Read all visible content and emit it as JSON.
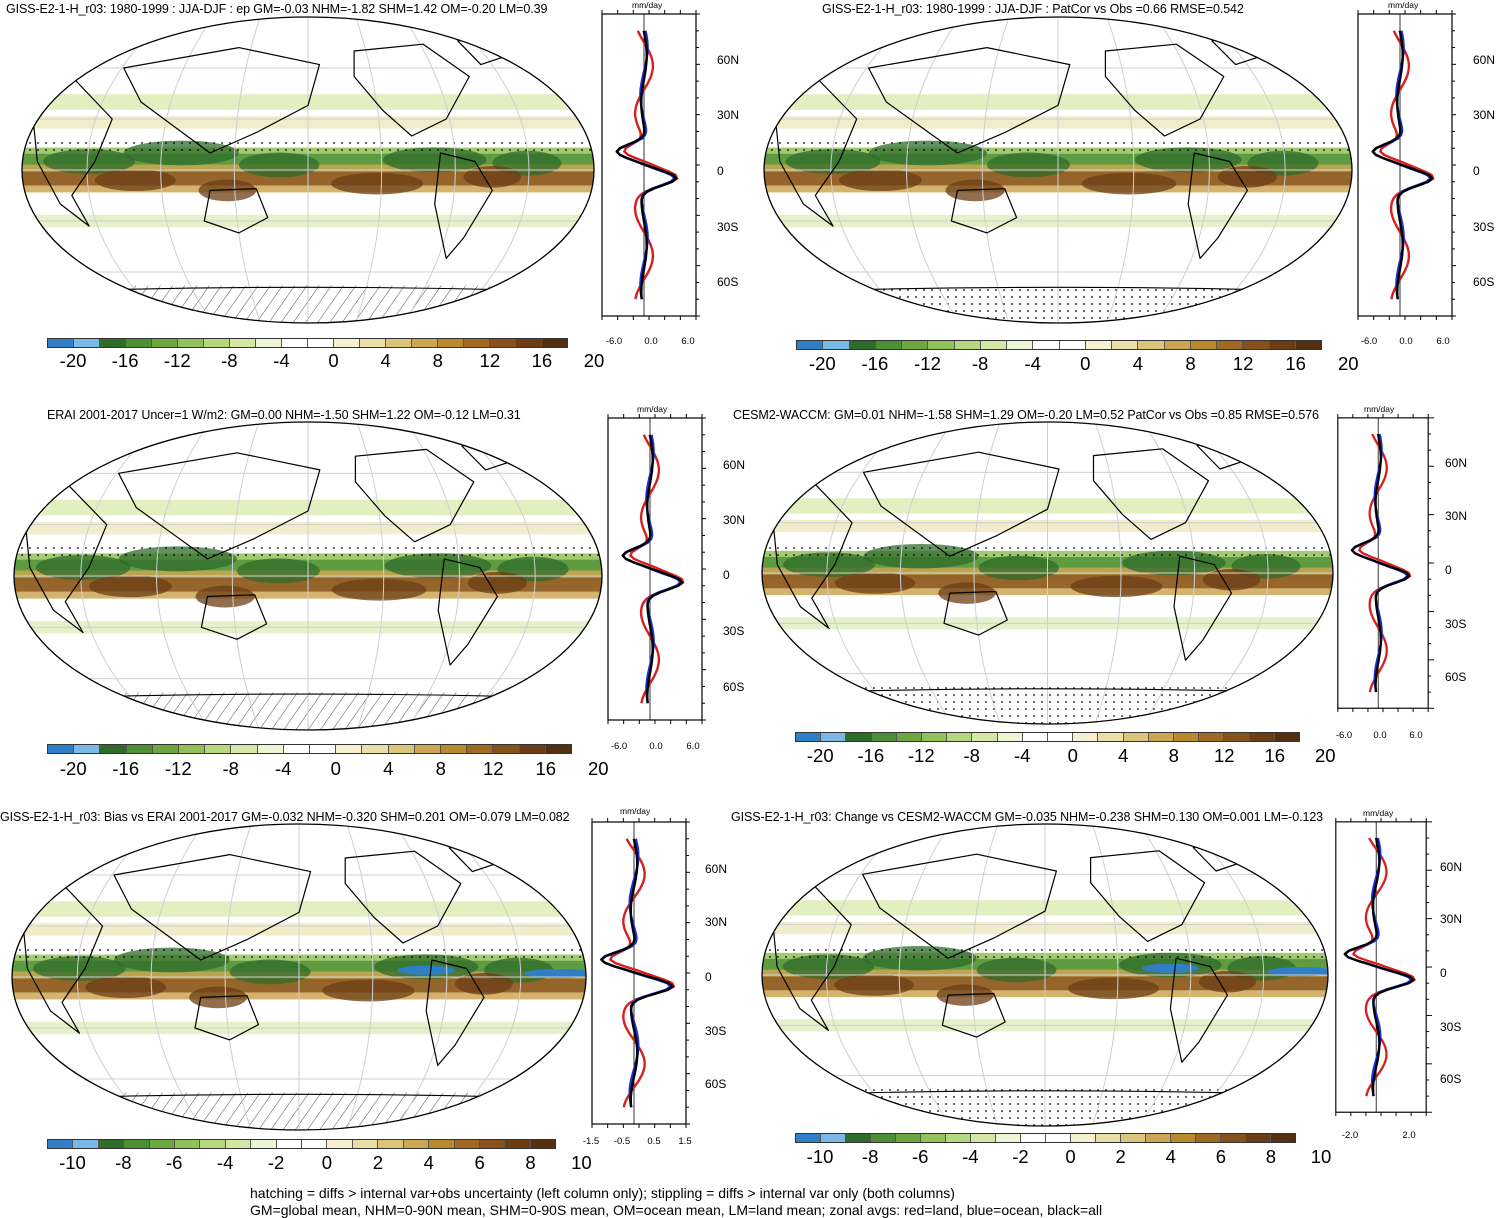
{
  "panels": [
    {
      "id": "p1",
      "title": "GISS-E2-1-H_r03: 1980-1999 : JJA-DJF : ep GM=-0.03 NHM=-1.82 SHM=1.42 OM=-0.20 LM=0.39",
      "colorbar_labels": [
        "-20",
        "-16",
        "-12",
        "-8",
        "-4",
        "0",
        "4",
        "8",
        "12",
        "16",
        "20"
      ],
      "zonal_xticks": [
        "-6.0",
        "0.0",
        "6.0"
      ],
      "zonal_ylabels": [
        "60N",
        "30N",
        "0",
        "30S",
        "60S"
      ],
      "zonal_unit": "mm/day",
      "hatching": true
    },
    {
      "id": "p2",
      "title": "GISS-E2-1-H_r03: 1980-1999 : JJA-DJF : PatCor vs Obs =0.66 RMSE=0.542",
      "colorbar_labels": [
        "-20",
        "-16",
        "-12",
        "-8",
        "-4",
        "0",
        "4",
        "8",
        "12",
        "16",
        "20"
      ],
      "zonal_xticks": [
        "-6.0",
        "0.0",
        "6.0"
      ],
      "zonal_ylabels": [
        "60N",
        "30N",
        "0",
        "30S",
        "60S"
      ],
      "zonal_unit": "mm/day",
      "hatching": false
    },
    {
      "id": "p3",
      "title": "ERAI 2001-2017 Uncer=1 W/m2: GM=0.00 NHM=-1.50 SHM=1.22 OM=-0.12 LM=0.31",
      "colorbar_labels": [
        "-20",
        "-16",
        "-12",
        "-8",
        "-4",
        "0",
        "4",
        "8",
        "12",
        "16",
        "20"
      ],
      "zonal_xticks": [
        "-6.0",
        "0.0",
        "6.0"
      ],
      "zonal_ylabels": [
        "60N",
        "30N",
        "0",
        "30S",
        "60S"
      ],
      "zonal_unit": "mm/day",
      "hatching": true
    },
    {
      "id": "p4",
      "title": "CESM2-WACCM: GM=0.01 NHM=-1.58 SHM=1.29 OM=-0.20 LM=0.52 PatCor vs Obs =0.85 RMSE=0.576",
      "colorbar_labels": [
        "-20",
        "-16",
        "-12",
        "-8",
        "-4",
        "0",
        "4",
        "8",
        "12",
        "16",
        "20"
      ],
      "zonal_xticks": [
        "-6.0",
        "0.0",
        "6.0"
      ],
      "zonal_ylabels": [
        "60N",
        "30N",
        "0",
        "30S",
        "60S"
      ],
      "zonal_unit": "mm/day",
      "hatching": false
    },
    {
      "id": "p5",
      "title": "GISS-E2-1-H_r03: Bias vs ERAI 2001-2017 GM=-0.032 NHM=-0.320 SHM=0.201 OM=-0.079 LM=0.082",
      "colorbar_labels": [
        "-10",
        "-8",
        "-6",
        "-4",
        "-2",
        "0",
        "2",
        "4",
        "6",
        "8",
        "10"
      ],
      "zonal_xticks": [
        "-1.5",
        "-0.5",
        "0.5",
        "1.5"
      ],
      "zonal_ylabels": [
        "60N",
        "30N",
        "0",
        "30S",
        "60S"
      ],
      "zonal_unit": "mm/day",
      "hatching": true
    },
    {
      "id": "p6",
      "title": "GISS-E2-1-H_r03: Change vs CESM2-WACCM GM=-0.035 NHM=-0.238 SHM=0.130 OM=0.001 LM=-0.123",
      "colorbar_labels": [
        "-10",
        "-8",
        "-6",
        "-4",
        "-2",
        "0",
        "2",
        "4",
        "6",
        "8",
        "10"
      ],
      "zonal_xticks": [
        "-2.0",
        "2.0"
      ],
      "zonal_ylabels": [
        "60N",
        "30N",
        "0",
        "30S",
        "60S"
      ],
      "zonal_unit": "mm/day",
      "hatching": false
    }
  ],
  "colormap": [
    "#2f7fc6",
    "#7ab9e6",
    "#2f6b2a",
    "#4e8e34",
    "#6ea73f",
    "#92c15a",
    "#b5d77e",
    "#d4e8a6",
    "#edf5d7",
    "#ffffff",
    "#ffffff",
    "#f6efd2",
    "#eadfa6",
    "#dbc57a",
    "#cba653",
    "#b9892e",
    "#a06a22",
    "#86511b",
    "#6c3d14",
    "#53300f"
  ],
  "colors": {
    "land_line": "#d62020",
    "ocean_line": "#1a2fd6",
    "all_line": "#000000"
  },
  "footnote": [
    "hatching = diffs > internal var+obs uncertainty (left column only); stippling = diffs > internal var only (both columns)",
    "GM=global mean, NHM=0-90N mean, SHM=0-90S mean, OM=ocean mean, LM=land mean; zonal avgs: red=land, blue=ocean, black=all"
  ]
}
